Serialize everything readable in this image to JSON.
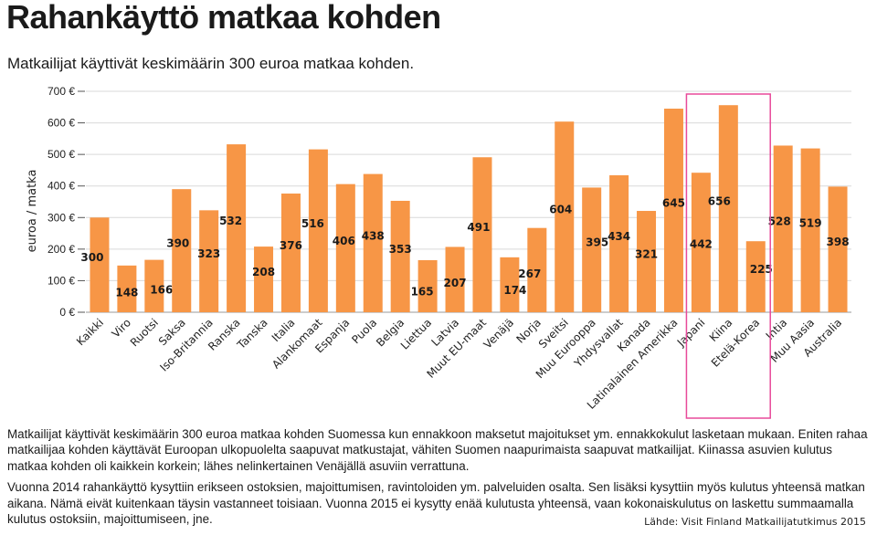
{
  "header": {
    "title": "Rahankäyttö matkaa kohden",
    "subtitle": "Matkailijat käyttivät keskimäärin 300 euroa matkaa kohden."
  },
  "chart_data": {
    "type": "bar",
    "ylabel": "euroa / matka",
    "ylim": [
      0,
      700
    ],
    "yticks": [
      0,
      100,
      200,
      300,
      400,
      500,
      600,
      700
    ],
    "ytick_labels": [
      "0 €",
      "100 €",
      "200 €",
      "300 €",
      "400 €",
      "500 €",
      "600 €",
      "700 €"
    ],
    "grid": true,
    "categories": [
      "Kaikki",
      "Viro",
      "Ruotsi",
      "Saksa",
      "Iso-Britannia",
      "Ranska",
      "Tanska",
      "Italia",
      "Alankomaat",
      "Espanja",
      "Puola",
      "Belgia",
      "Liettua",
      "Latvia",
      "Muut EU-maat",
      "Venäjä",
      "Norja",
      "Sveitsi",
      "Muu Eurooppa",
      "Yhdysvallat",
      "Kanada",
      "Latinalainen Amerikka",
      "Japani",
      "Kiina",
      "Etelä-Korea",
      "Intia",
      "Muu Aasia",
      "Australia"
    ],
    "values": [
      300,
      148,
      166,
      390,
      323,
      532,
      208,
      376,
      516,
      406,
      438,
      353,
      165,
      207,
      491,
      174,
      267,
      604,
      395,
      434,
      321,
      645,
      442,
      656,
      225,
      528,
      519,
      398
    ],
    "highlight": [
      "Japani",
      "Kiina",
      "Etelä-Korea"
    ],
    "bar_color": "#f79646",
    "highlight_color": "#e84a9a"
  },
  "body": {
    "paragraph1": "Matkailijat käyttivät keskimäärin 300 euroa matkaa kohden Suomessa kun ennakkoon maksetut majoitukset ym. ennakkokulut lasketaan mukaan. Eniten rahaa matkailijaa kohden käyttävät Euroopan ulkopuolelta saapuvat matkustajat, vähiten Suomen naapurimaista saapuvat matkailijat. Kiinassa asuvien kulutus matkaa kohden oli kaikkein korkein; lähes nelinkertainen Venäjällä asuviin verrattuna.",
    "paragraph2": "Vuonna 2014 rahankäyttö kysyttiin erikseen ostoksien, majoittumisen, ravintoloiden ym. palveluiden osalta. Sen lisäksi kysyttiin myös kulutus yhteensä matkan aikana. Nämä eivät kuitenkaan täysin vastanneet toisiaan. Vuonna 2015 ei kysytty enää kulutusta yhteensä, vaan kokonaiskulutus on laskettu summaamalla kulutus ostoksiin, majoittumiseen, jne."
  },
  "source": "Lähde: Visit Finland Matkailijatutkimus 2015"
}
